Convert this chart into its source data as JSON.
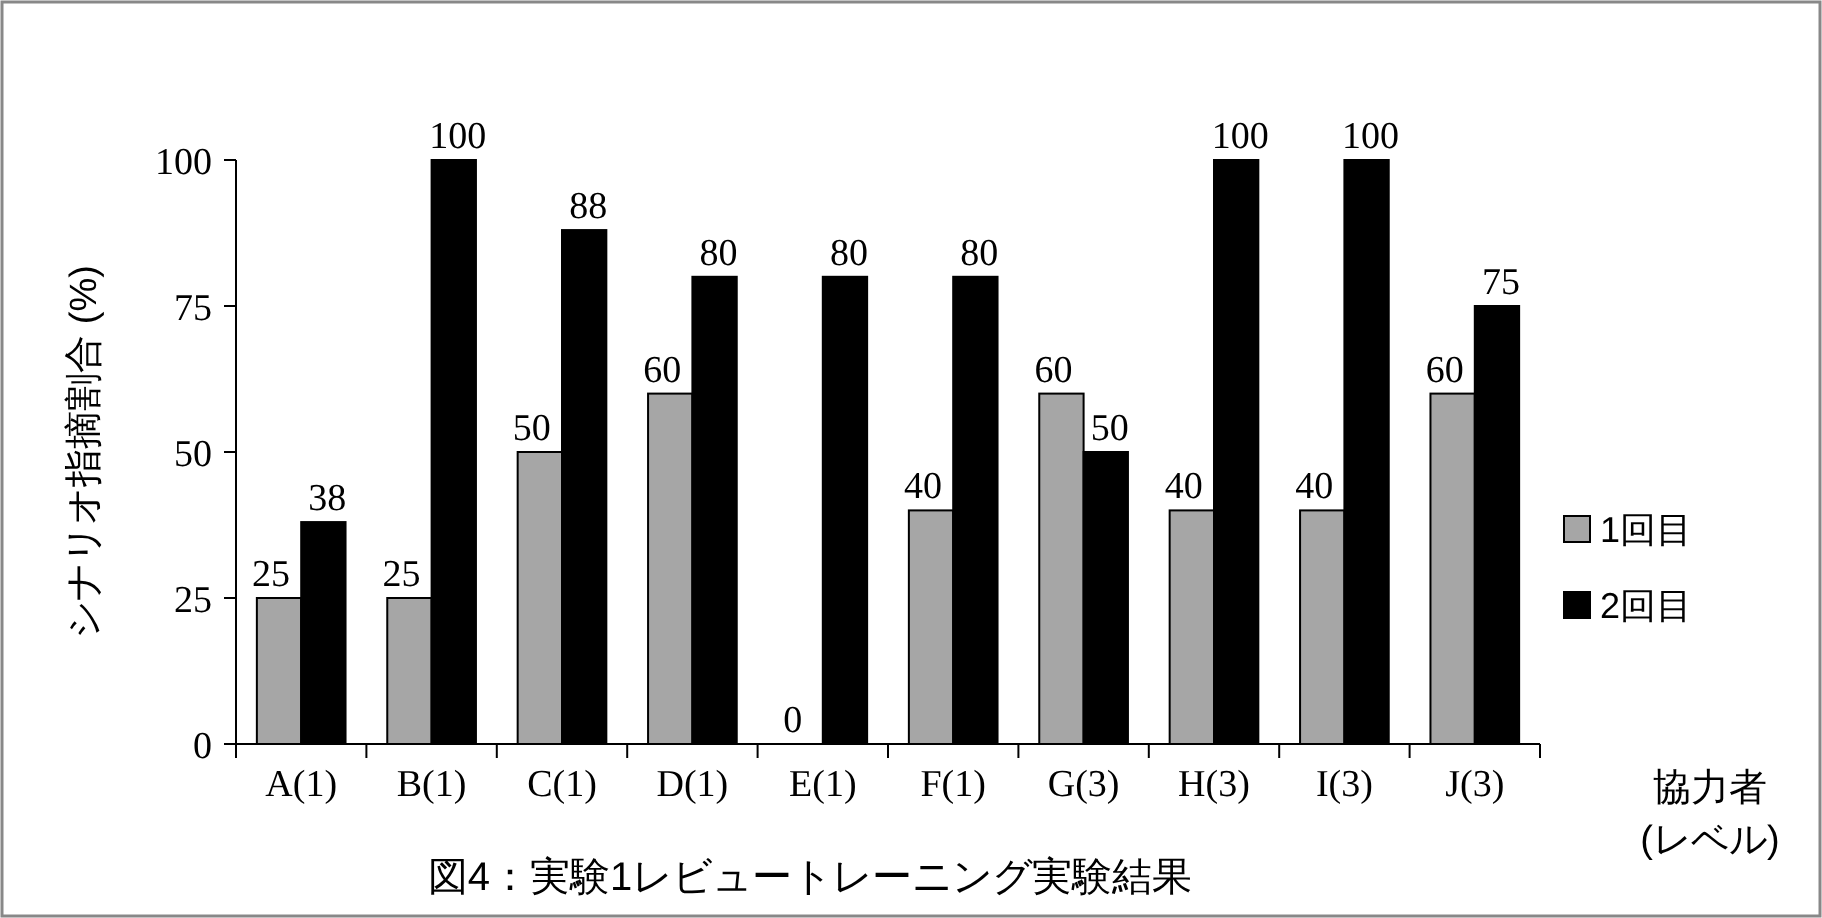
{
  "chart_data": {
    "type": "bar",
    "title": "図4：実験1レビュートレーニング実験結果",
    "xlabel": "協力者\n(レベル)",
    "ylabel": "シナリオ指摘割合 (%)",
    "categories": [
      "A(1)",
      "B(1)",
      "C(1)",
      "D(1)",
      "E(1)",
      "F(1)",
      "G(3)",
      "H(3)",
      "I(3)",
      "J(3)"
    ],
    "series": [
      {
        "name": "1回目",
        "color": "#a6a6a6",
        "values": [
          25,
          25,
          50,
          60,
          0,
          40,
          60,
          40,
          40,
          60
        ]
      },
      {
        "name": "2回目",
        "color": "#000000",
        "values": [
          38,
          100,
          88,
          80,
          80,
          80,
          50,
          100,
          100,
          75
        ]
      }
    ],
    "ylim": [
      0,
      100
    ],
    "yticks": [
      0,
      25,
      50,
      75,
      100
    ],
    "legend": "right",
    "data_labels": true
  }
}
